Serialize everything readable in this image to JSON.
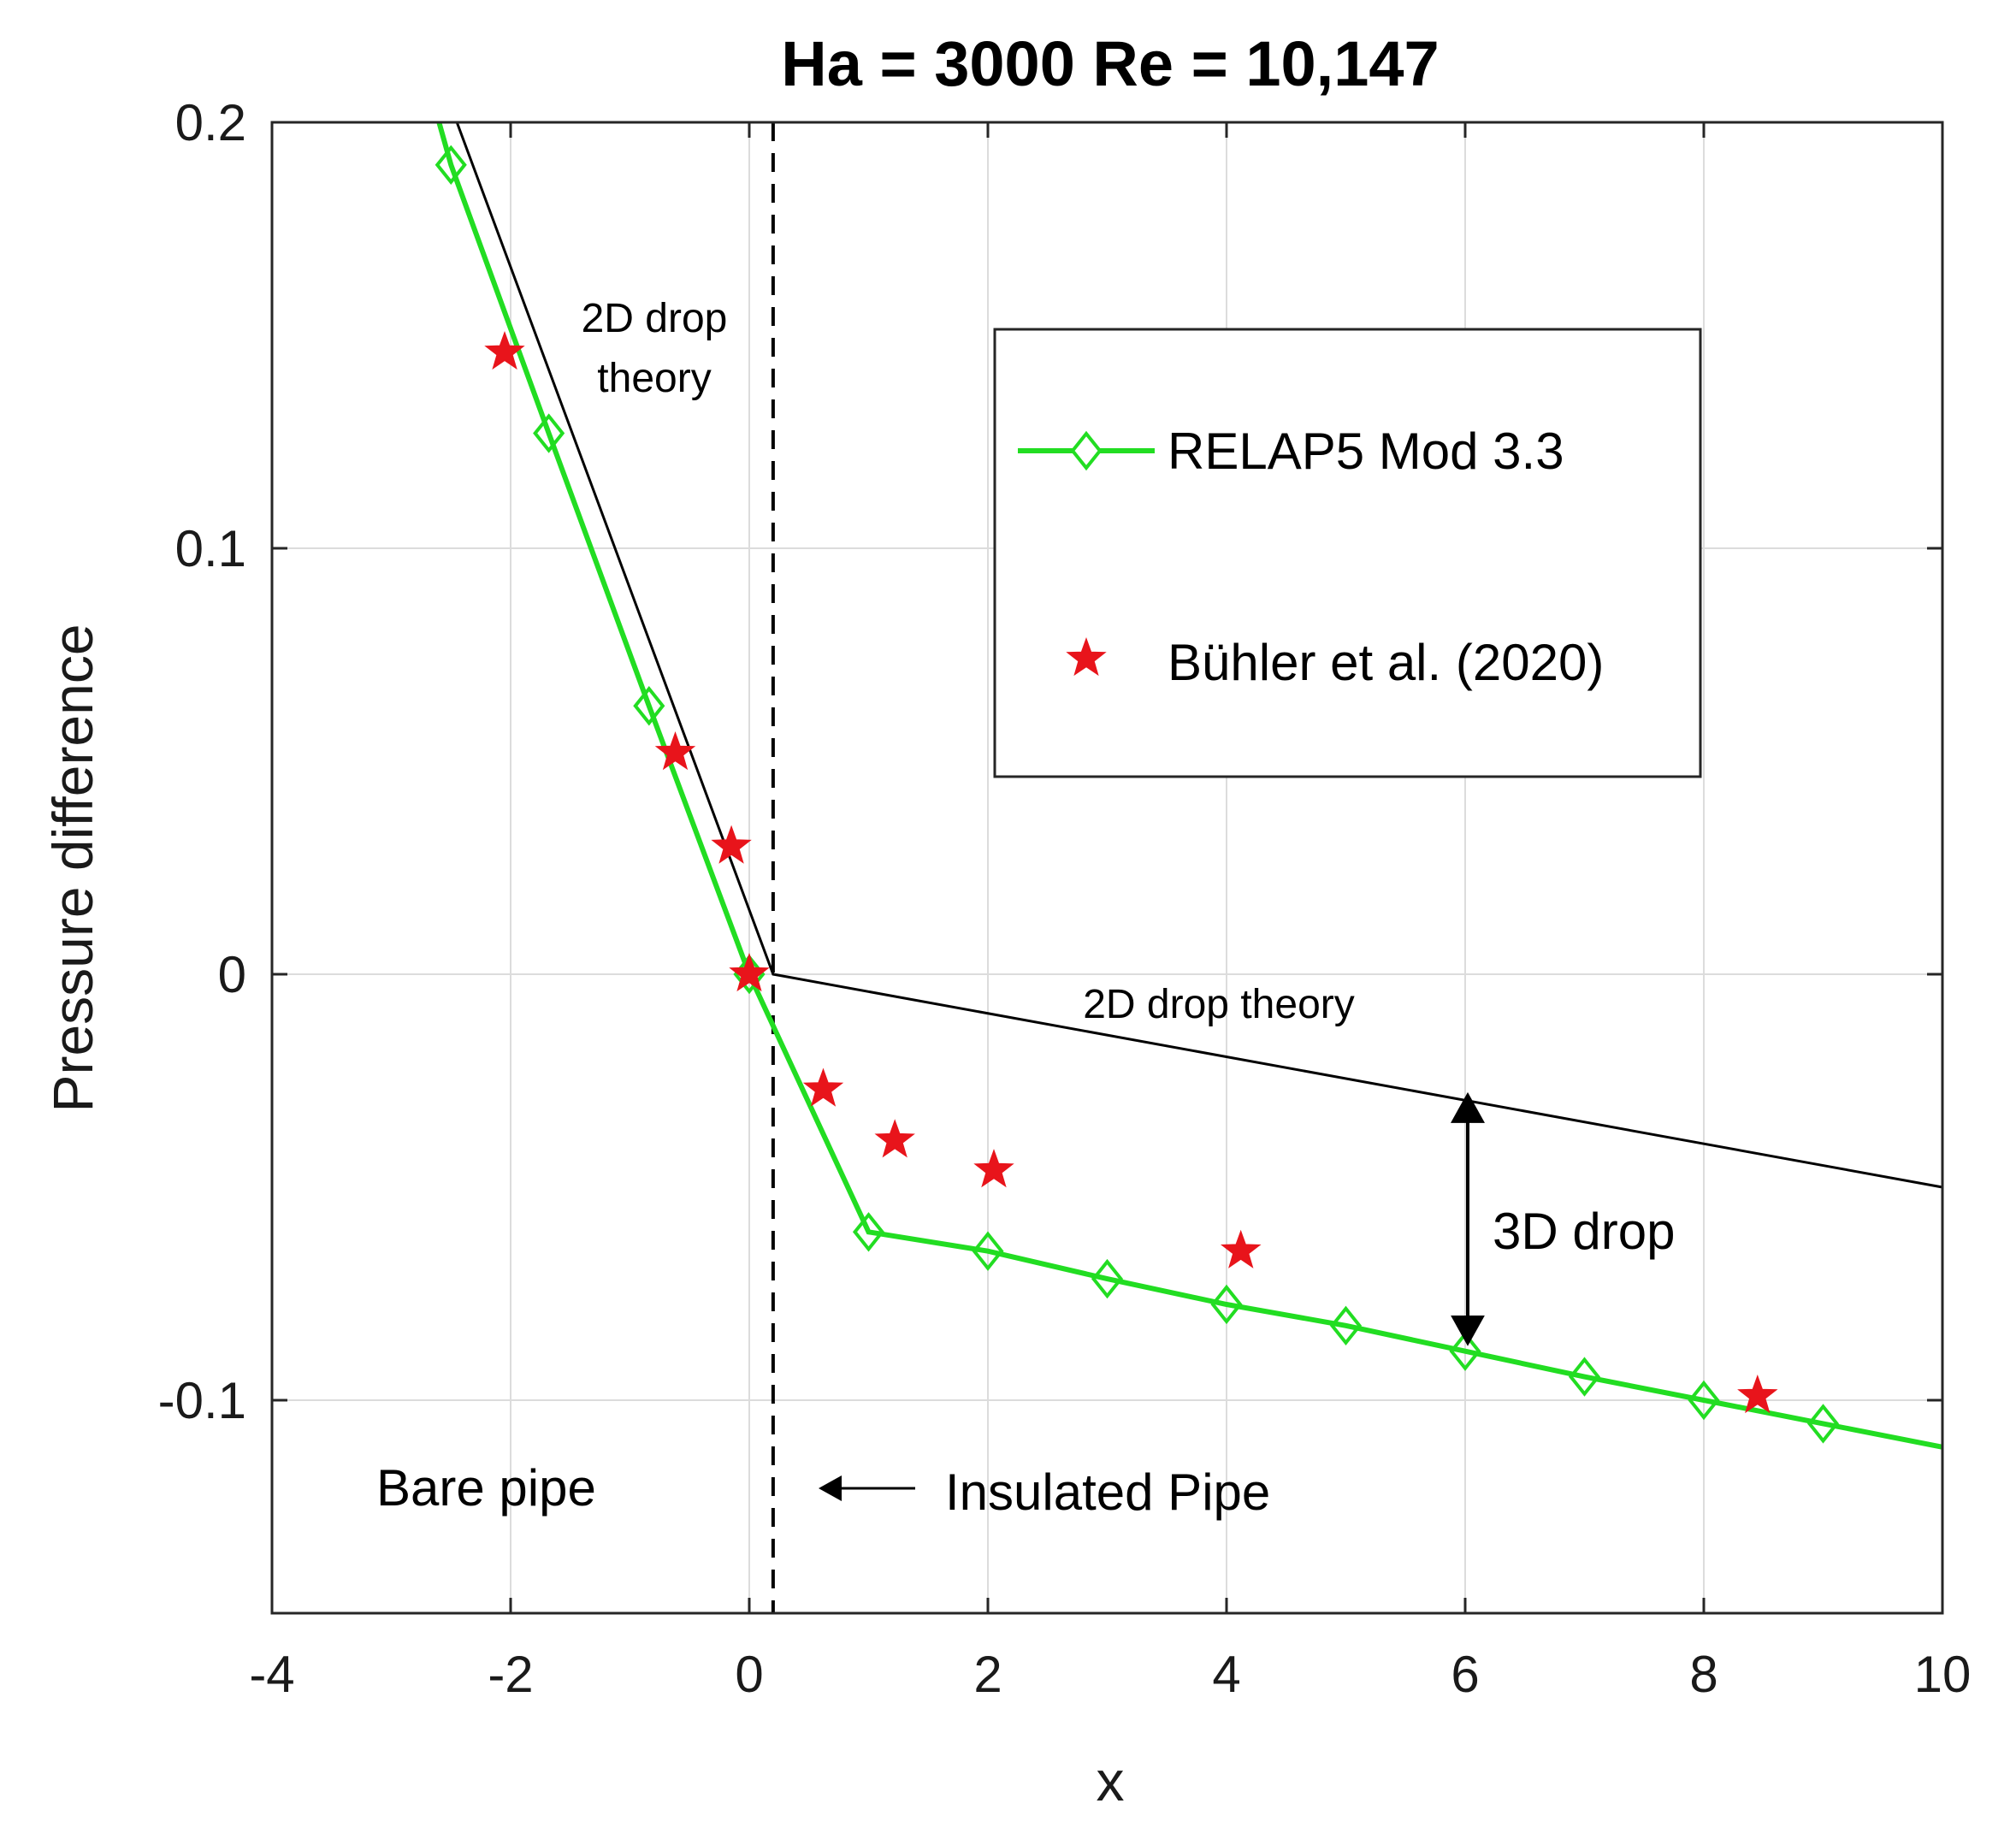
{
  "chart_data": {
    "type": "line",
    "title": "Ha = 3000 Re = 10,147",
    "xlabel": "x",
    "ylabel": "Pressure  difference",
    "xlim": [
      -4,
      10
    ],
    "ylim": [
      -0.15,
      0.2
    ],
    "xticks": [
      -4,
      -2,
      0,
      2,
      4,
      6,
      8,
      10
    ],
    "yticks": [
      -0.1,
      0,
      0.1,
      0.2
    ],
    "xtick_labels": [
      "-4",
      "-2",
      "0",
      "2",
      "4",
      "6",
      "8",
      "10"
    ],
    "ytick_labels": [
      "-0.1",
      "0",
      "0.1",
      "0.2"
    ],
    "grid": true,
    "legend_position": "top-right",
    "colors": {
      "relap": "#22dd22",
      "buhler": "#e8141b",
      "theory": "#000000"
    },
    "series": [
      {
        "name": "RELAP5 Mod 3.3",
        "kind": "line-marker",
        "marker": "diamond",
        "x": [
          -2.6,
          -2.5,
          -1.68,
          -0.84,
          0.0,
          1.0,
          2.0,
          3.0,
          4.0,
          5.0,
          6.0,
          7.0,
          8.0,
          9.0,
          10.0
        ],
        "y": [
          0.2,
          0.19,
          0.127,
          0.063,
          0.0,
          -0.0605,
          -0.065,
          -0.0715,
          -0.0775,
          -0.0825,
          -0.0885,
          -0.0945,
          -0.1,
          -0.1055,
          -0.111
        ]
      },
      {
        "name": "Bühler et al. (2020)",
        "kind": "scatter",
        "marker": "star",
        "x": [
          -2.05,
          -0.62,
          -0.15,
          0.0,
          0.62,
          1.22,
          2.05,
          4.12,
          8.45
        ],
        "y": [
          0.146,
          0.052,
          0.03,
          0.0,
          -0.027,
          -0.039,
          -0.046,
          -0.065,
          -0.099
        ]
      },
      {
        "name": "2D drop theory",
        "kind": "line",
        "in_legend": false,
        "x": [
          -2.45,
          0.2,
          10.0
        ],
        "y": [
          0.2,
          0.0,
          -0.05
        ]
      }
    ],
    "reference_lines": [
      {
        "orientation": "vertical",
        "x": 0.2,
        "style": "dashed"
      }
    ],
    "annotations": {
      "theory_label_1": [
        "2D drop",
        "theory"
      ],
      "theory_label_2": "2D drop theory",
      "drop3d": "3D drop",
      "bare_pipe": "Bare pipe",
      "insulated_pipe": "Insulated Pipe"
    }
  }
}
